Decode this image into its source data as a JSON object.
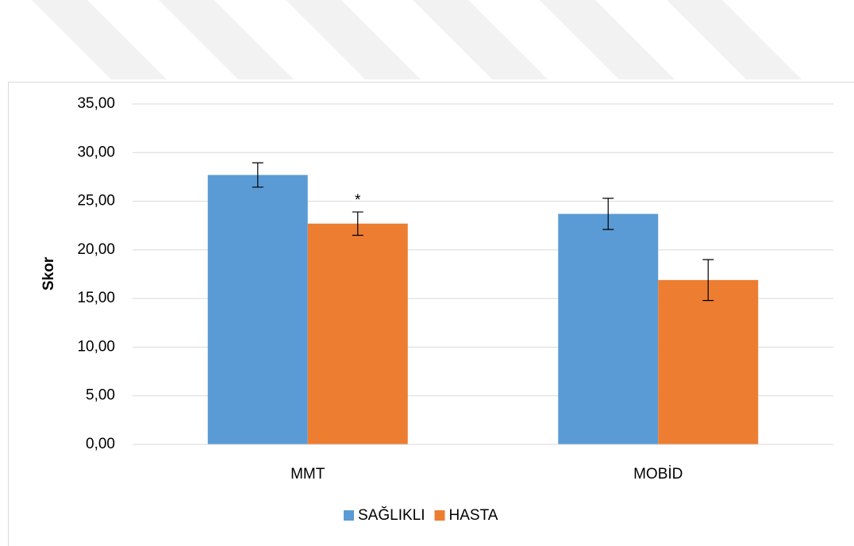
{
  "chart_data": {
    "type": "bar",
    "y_label": "Skor",
    "categories": [
      "MMT",
      "MOBİD"
    ],
    "series": [
      {
        "name": "SAĞLIKLI",
        "color": "#5b9bd5",
        "values": [
          27.7,
          23.7
        ],
        "errors": [
          1.25,
          1.6
        ]
      },
      {
        "name": "HASTA",
        "color": "#ed7d31",
        "values": [
          22.7,
          16.9
        ],
        "errors": [
          1.2,
          2.1
        ]
      }
    ],
    "ylim": [
      0,
      35
    ],
    "yticks": [
      {
        "value": 0,
        "label": "0,00"
      },
      {
        "value": 5,
        "label": "5,00"
      },
      {
        "value": 10,
        "label": "10,00"
      },
      {
        "value": 15,
        "label": "15,00"
      },
      {
        "value": 20,
        "label": "20,00"
      },
      {
        "value": 25,
        "label": "25,00"
      },
      {
        "value": 30,
        "label": "30,00"
      },
      {
        "value": 35,
        "label": "35,00"
      }
    ],
    "grid": true,
    "legend": "bottom",
    "annotations": [
      "*"
    ]
  }
}
